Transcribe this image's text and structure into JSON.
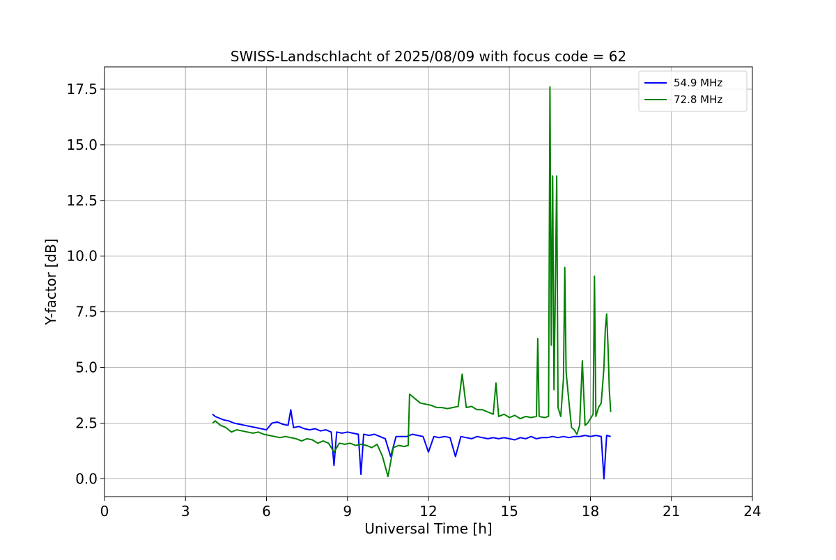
{
  "chart_data": {
    "type": "line",
    "title": "SWISS-Landschlacht of 2025/08/09 with focus code = 62",
    "xlabel": "Universal Time [h]",
    "ylabel": "Y-factor [dB]",
    "xlim": [
      0,
      24
    ],
    "ylim": [
      -0.8,
      18.5
    ],
    "xticks": [
      0,
      3,
      6,
      9,
      12,
      15,
      18,
      21,
      24
    ],
    "xtick_labels": [
      "0",
      "3",
      "6",
      "9",
      "12",
      "15",
      "18",
      "21",
      "24"
    ],
    "yticks": [
      0,
      2.5,
      5,
      7.5,
      10,
      12.5,
      15,
      17.5
    ],
    "ytick_labels": [
      "0.0",
      "2.5",
      "5.0",
      "7.5",
      "10.0",
      "12.5",
      "15.0",
      "17.5"
    ],
    "grid": true,
    "legend_position": "top-right",
    "series": [
      {
        "name": "  54.9 MHz",
        "color": "#0000ff",
        "x": [
          4.0,
          4.1,
          4.2,
          4.4,
          4.6,
          4.8,
          5.0,
          5.2,
          5.4,
          5.6,
          5.8,
          6.0,
          6.2,
          6.4,
          6.6,
          6.8,
          6.9,
          7.0,
          7.2,
          7.4,
          7.6,
          7.8,
          8.0,
          8.2,
          8.4,
          8.5,
          8.6,
          8.8,
          9.0,
          9.2,
          9.4,
          9.5,
          9.6,
          9.8,
          10.0,
          10.2,
          10.4,
          10.6,
          10.8,
          11.0,
          11.2,
          11.4,
          11.6,
          11.8,
          12.0,
          12.2,
          12.4,
          12.6,
          12.8,
          13.0,
          13.2,
          13.4,
          13.6,
          13.8,
          14.0,
          14.2,
          14.4,
          14.6,
          14.8,
          15.0,
          15.2,
          15.4,
          15.6,
          15.8,
          16.0,
          16.2,
          16.4,
          16.6,
          16.8,
          17.0,
          17.2,
          17.4,
          17.6,
          17.8,
          18.0,
          18.2,
          18.4,
          18.5,
          18.6,
          18.75
        ],
        "y": [
          2.9,
          2.8,
          2.75,
          2.65,
          2.6,
          2.5,
          2.45,
          2.4,
          2.35,
          2.3,
          2.25,
          2.2,
          2.5,
          2.55,
          2.45,
          2.4,
          3.1,
          2.3,
          2.35,
          2.25,
          2.2,
          2.25,
          2.15,
          2.2,
          2.1,
          0.6,
          2.1,
          2.05,
          2.1,
          2.05,
          2.0,
          0.2,
          2.0,
          1.95,
          2.0,
          1.9,
          1.8,
          1.0,
          1.9,
          1.9,
          1.9,
          2.0,
          1.95,
          1.9,
          1.2,
          1.9,
          1.85,
          1.9,
          1.85,
          1.0,
          1.9,
          1.85,
          1.8,
          1.9,
          1.85,
          1.8,
          1.85,
          1.8,
          1.85,
          1.8,
          1.75,
          1.85,
          1.8,
          1.9,
          1.8,
          1.85,
          1.85,
          1.9,
          1.85,
          1.9,
          1.85,
          1.9,
          1.9,
          1.95,
          1.9,
          1.95,
          1.9,
          0.0,
          1.95,
          1.9
        ]
      },
      {
        "name": "  72.8 MHz",
        "color": "#008000",
        "x": [
          4.0,
          4.1,
          4.3,
          4.5,
          4.7,
          4.9,
          5.1,
          5.3,
          5.5,
          5.7,
          5.9,
          6.1,
          6.3,
          6.5,
          6.7,
          6.9,
          7.1,
          7.3,
          7.5,
          7.7,
          7.9,
          8.1,
          8.3,
          8.5,
          8.7,
          8.9,
          9.1,
          9.3,
          9.5,
          9.7,
          9.9,
          10.1,
          10.3,
          10.5,
          10.7,
          10.9,
          11.1,
          11.25,
          11.3,
          11.5,
          11.7,
          11.9,
          12.1,
          12.3,
          12.5,
          12.7,
          12.9,
          13.1,
          13.25,
          13.4,
          13.6,
          13.8,
          14.0,
          14.2,
          14.4,
          14.5,
          14.6,
          14.8,
          15.0,
          15.2,
          15.4,
          15.6,
          15.8,
          16.0,
          16.05,
          16.1,
          16.3,
          16.45,
          16.5,
          16.55,
          16.6,
          16.65,
          16.7,
          16.75,
          16.8,
          16.9,
          17.0,
          17.05,
          17.1,
          17.2,
          17.3,
          17.4,
          17.5,
          17.6,
          17.7,
          17.8,
          17.9,
          18.0,
          18.1,
          18.15,
          18.2,
          18.3,
          18.4,
          18.5,
          18.55,
          18.6,
          18.65,
          18.7,
          18.75
        ],
        "y": [
          2.5,
          2.6,
          2.4,
          2.3,
          2.1,
          2.2,
          2.15,
          2.1,
          2.05,
          2.1,
          2.0,
          1.95,
          1.9,
          1.85,
          1.9,
          1.85,
          1.8,
          1.7,
          1.8,
          1.75,
          1.6,
          1.7,
          1.6,
          1.2,
          1.6,
          1.55,
          1.6,
          1.5,
          1.55,
          1.5,
          1.4,
          1.55,
          1.0,
          0.1,
          1.4,
          1.5,
          1.45,
          1.5,
          3.8,
          3.6,
          3.4,
          3.35,
          3.3,
          3.2,
          3.2,
          3.15,
          3.2,
          3.25,
          4.7,
          3.2,
          3.25,
          3.1,
          3.1,
          3.0,
          2.9,
          4.3,
          2.8,
          2.9,
          2.75,
          2.85,
          2.7,
          2.8,
          2.75,
          2.8,
          6.3,
          2.8,
          2.75,
          2.8,
          17.6,
          6.0,
          13.6,
          4.0,
          8.4,
          13.6,
          3.2,
          2.8,
          4.5,
          9.5,
          4.8,
          3.5,
          2.3,
          2.2,
          2.0,
          2.4,
          5.3,
          2.4,
          2.5,
          2.7,
          2.9,
          9.1,
          2.8,
          3.2,
          3.4,
          5.0,
          6.7,
          7.4,
          6.0,
          4.0,
          3.0
        ]
      }
    ]
  }
}
